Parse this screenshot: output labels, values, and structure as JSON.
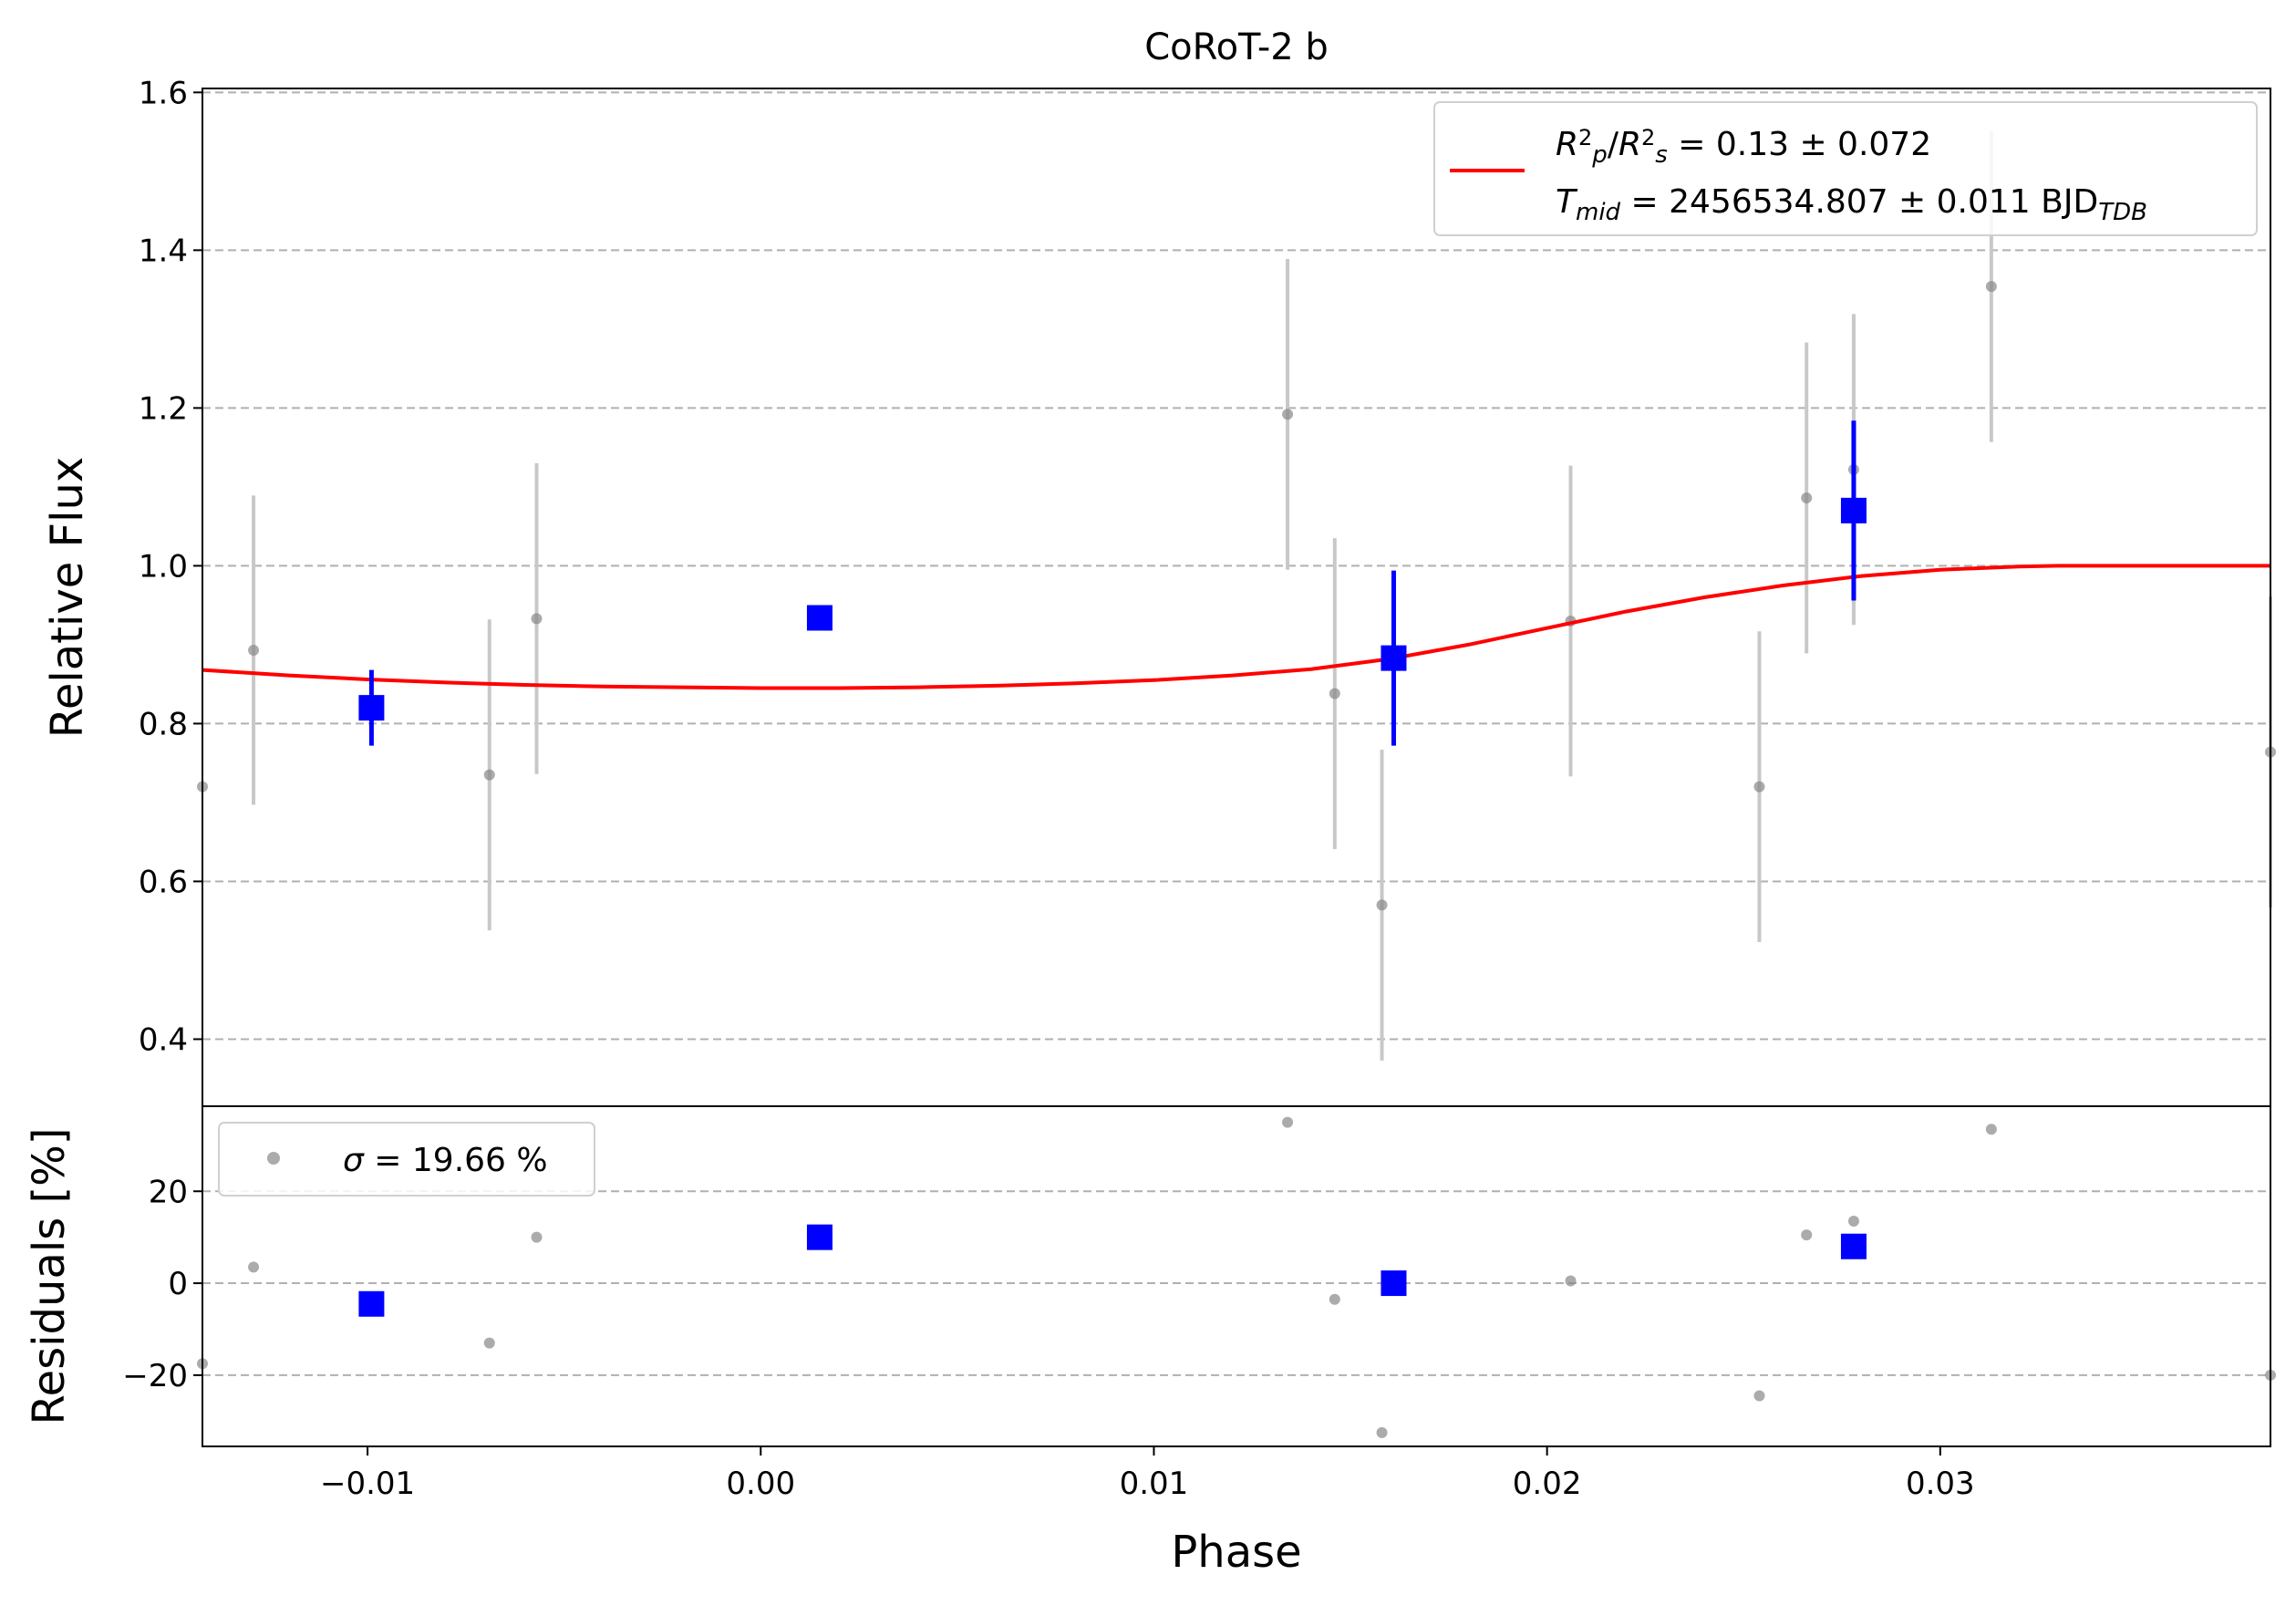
{
  "chart_data": [
    {
      "panel": "main",
      "type": "scatter",
      "title": "CoRoT-2 b",
      "xlabel": "Phase",
      "ylabel": "Relative Flux",
      "xlim": [
        -0.0142,
        0.0384
      ],
      "ylim": [
        0.315,
        1.605
      ],
      "xticks": [
        "−0.01",
        "0.00",
        "0.01",
        "0.02",
        "0.03"
      ],
      "xtick_values": [
        -0.01,
        0.0,
        0.01,
        0.02,
        0.03
      ],
      "yticks": [
        "0.4",
        "0.6",
        "0.8",
        "1.0",
        "1.2",
        "1.4",
        "1.6"
      ],
      "ytick_values": [
        0.4,
        0.6,
        0.8,
        1.0,
        1.2,
        1.4,
        1.6
      ],
      "grid": "y dashed",
      "legend_position": "top-right",
      "legend": {
        "line1_parts": [
          {
            "text": "R",
            "style": "italic"
          },
          {
            "text": "2",
            "style": "sup"
          },
          {
            "text": "p",
            "style": "sub-italic"
          },
          {
            "text": "/",
            "style": "normal"
          },
          {
            "text": "R",
            "style": "italic"
          },
          {
            "text": "2",
            "style": "sup"
          },
          {
            "text": "s",
            "style": "sub-italic"
          },
          {
            "text": " = 0.13 ± 0.072",
            "style": "normal"
          }
        ],
        "line2_parts": [
          {
            "text": "T",
            "style": "italic"
          },
          {
            "text": "mid",
            "style": "sub-italic"
          },
          {
            "text": " = 2456534.807 ± 0.011 BJD",
            "style": "normal"
          },
          {
            "text": "TDB",
            "style": "sub-italic"
          }
        ]
      },
      "colors": {
        "raw": "#888888",
        "raw_err": "#c8c8c8",
        "binned": "#0000ff",
        "model": "#ff0000",
        "grid": "#b0b0b0"
      },
      "series": [
        {
          "kind": "raw",
          "points": [
            {
              "x": -0.0142,
              "y": 0.72,
              "err": 0.0
            },
            {
              "x": -0.0129,
              "y": 0.893,
              "err": 0.196
            },
            {
              "x": -0.0069,
              "y": 0.735,
              "err": 0.197
            },
            {
              "x": -0.0057,
              "y": 0.933,
              "err": 0.197
            },
            {
              "x": 0.0134,
              "y": 1.192,
              "err": 0.197
            },
            {
              "x": 0.0146,
              "y": 0.838,
              "err": 0.197
            },
            {
              "x": 0.0158,
              "y": 0.57,
              "err": 0.197
            },
            {
              "x": 0.0206,
              "y": 0.93,
              "err": 0.197
            },
            {
              "x": 0.0254,
              "y": 0.72,
              "err": 0.197
            },
            {
              "x": 0.0266,
              "y": 1.086,
              "err": 0.197
            },
            {
              "x": 0.0278,
              "y": 1.122,
              "err": 0.197
            },
            {
              "x": 0.0313,
              "y": 1.354,
              "err": 0.197
            },
            {
              "x": 0.0384,
              "y": 0.764,
              "err": 0.197
            }
          ]
        },
        {
          "kind": "binned",
          "points": [
            {
              "x": -0.0099,
              "y": 0.82,
              "err": 0.048
            },
            {
              "x": 0.0015,
              "y": 0.934,
              "err": 0.0
            },
            {
              "x": 0.0161,
              "y": 0.883,
              "err": 0.111
            },
            {
              "x": 0.0278,
              "y": 1.07,
              "err": 0.114
            }
          ]
        },
        {
          "kind": "model",
          "points": [
            {
              "x": -0.0142,
              "y": 0.868
            },
            {
              "x": -0.012,
              "y": 0.861
            },
            {
              "x": -0.01,
              "y": 0.856
            },
            {
              "x": -0.008,
              "y": 0.852
            },
            {
              "x": -0.006,
              "y": 0.849
            },
            {
              "x": -0.004,
              "y": 0.847
            },
            {
              "x": -0.002,
              "y": 0.846
            },
            {
              "x": 0.0,
              "y": 0.845
            },
            {
              "x": 0.002,
              "y": 0.845
            },
            {
              "x": 0.004,
              "y": 0.846
            },
            {
              "x": 0.006,
              "y": 0.848
            },
            {
              "x": 0.008,
              "y": 0.851
            },
            {
              "x": 0.01,
              "y": 0.855
            },
            {
              "x": 0.012,
              "y": 0.861
            },
            {
              "x": 0.014,
              "y": 0.869
            },
            {
              "x": 0.016,
              "y": 0.882
            },
            {
              "x": 0.018,
              "y": 0.9
            },
            {
              "x": 0.02,
              "y": 0.921
            },
            {
              "x": 0.022,
              "y": 0.942
            },
            {
              "x": 0.024,
              "y": 0.96
            },
            {
              "x": 0.026,
              "y": 0.975
            },
            {
              "x": 0.028,
              "y": 0.987
            },
            {
              "x": 0.03,
              "y": 0.995
            },
            {
              "x": 0.032,
              "y": 0.999
            },
            {
              "x": 0.033,
              "y": 1.0
            },
            {
              "x": 0.0384,
              "y": 1.0
            }
          ]
        }
      ]
    },
    {
      "panel": "residuals",
      "type": "scatter",
      "xlabel": "Phase",
      "ylabel": "Residuals [%]",
      "xlim": [
        -0.0142,
        0.0384
      ],
      "ylim": [
        -35.5,
        38.5
      ],
      "yticks": [
        "−20",
        "0",
        "20"
      ],
      "ytick_values": [
        -20,
        0,
        20
      ],
      "grid": "y dashed",
      "legend_position": "top-left",
      "legend": {
        "parts": [
          {
            "text": "σ",
            "style": "italic"
          },
          {
            "text": " = 19.66 %",
            "style": "normal"
          }
        ]
      },
      "series": [
        {
          "kind": "raw",
          "points": [
            {
              "x": -0.0142,
              "y": -17.5
            },
            {
              "x": -0.0129,
              "y": 3.5
            },
            {
              "x": -0.0069,
              "y": -13.0
            },
            {
              "x": -0.0057,
              "y": 10.0
            },
            {
              "x": 0.0134,
              "y": 35.0
            },
            {
              "x": 0.0146,
              "y": -3.5
            },
            {
              "x": 0.0158,
              "y": -32.5
            },
            {
              "x": 0.0206,
              "y": 0.5
            },
            {
              "x": 0.0254,
              "y": -24.5
            },
            {
              "x": 0.0266,
              "y": 10.5
            },
            {
              "x": 0.0278,
              "y": 13.5
            },
            {
              "x": 0.0313,
              "y": 33.5
            },
            {
              "x": 0.0384,
              "y": -20.0
            }
          ]
        },
        {
          "kind": "binned",
          "points": [
            {
              "x": -0.0099,
              "y": -4.5
            },
            {
              "x": 0.0015,
              "y": 10.0
            },
            {
              "x": 0.0161,
              "y": 0.0
            },
            {
              "x": 0.0278,
              "y": 8.0
            }
          ]
        }
      ]
    }
  ]
}
